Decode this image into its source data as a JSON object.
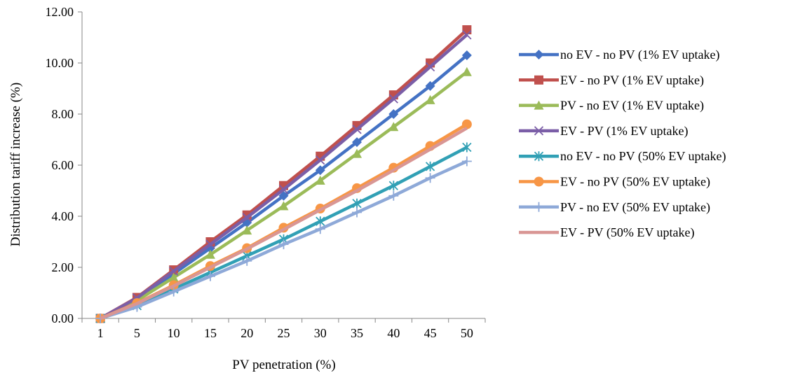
{
  "chart_data": {
    "type": "line",
    "xlabel": "PV penetration (%)",
    "ylabel": "Distribution tariff increase (%)",
    "ylim": [
      0,
      12
    ],
    "yticks": [
      "0.00",
      "2.00",
      "4.00",
      "6.00",
      "8.00",
      "10.00",
      "12.00"
    ],
    "categories": [
      "1",
      "5",
      "10",
      "15",
      "20",
      "25",
      "30",
      "35",
      "40",
      "45",
      "50"
    ],
    "grid": false,
    "legend_position": "right",
    "series": [
      {
        "name": "no EV - no PV (1% EV uptake)",
        "color": "#4472C4",
        "marker": "diamond",
        "values": [
          0,
          0.75,
          1.75,
          2.75,
          3.75,
          4.8,
          5.8,
          6.9,
          8.0,
          9.1,
          10.3
        ]
      },
      {
        "name": "EV - no PV (1% EV uptake)",
        "color": "#C0504D",
        "marker": "square",
        "values": [
          0,
          0.82,
          1.9,
          3.0,
          4.05,
          5.2,
          6.35,
          7.55,
          8.75,
          10.0,
          11.3
        ]
      },
      {
        "name": "PV - no EV (1% EV uptake)",
        "color": "#9BBB59",
        "marker": "triangle",
        "values": [
          0,
          0.7,
          1.6,
          2.5,
          3.45,
          4.4,
          5.4,
          6.45,
          7.5,
          8.55,
          9.65
        ]
      },
      {
        "name": "EV - PV (1% EV uptake)",
        "color": "#7B5EA7",
        "marker": "x",
        "values": [
          0,
          0.8,
          1.85,
          2.9,
          3.95,
          5.05,
          6.2,
          7.4,
          8.6,
          9.85,
          11.1
        ]
      },
      {
        "name": "no EV - no PV (50% EV uptake)",
        "color": "#31A0B5",
        "marker": "star",
        "values": [
          0,
          0.5,
          1.15,
          1.8,
          2.45,
          3.1,
          3.8,
          4.5,
          5.2,
          5.95,
          6.7
        ]
      },
      {
        "name": "EV - no PV (50% EV uptake)",
        "color": "#F79646",
        "marker": "circle",
        "values": [
          0,
          0.6,
          1.3,
          2.05,
          2.75,
          3.55,
          4.3,
          5.1,
          5.9,
          6.75,
          7.6
        ]
      },
      {
        "name": "PV - no EV (50% EV uptake)",
        "color": "#8EA9D8",
        "marker": "plus",
        "values": [
          0,
          0.45,
          1.05,
          1.65,
          2.25,
          2.9,
          3.5,
          4.15,
          4.8,
          5.5,
          6.15
        ]
      },
      {
        "name": "EV - PV (50% EV uptake)",
        "color": "#D99694",
        "marker": "none",
        "values": [
          0,
          0.58,
          1.27,
          2.0,
          2.72,
          3.48,
          4.25,
          5.0,
          5.8,
          6.62,
          7.45
        ]
      }
    ]
  }
}
